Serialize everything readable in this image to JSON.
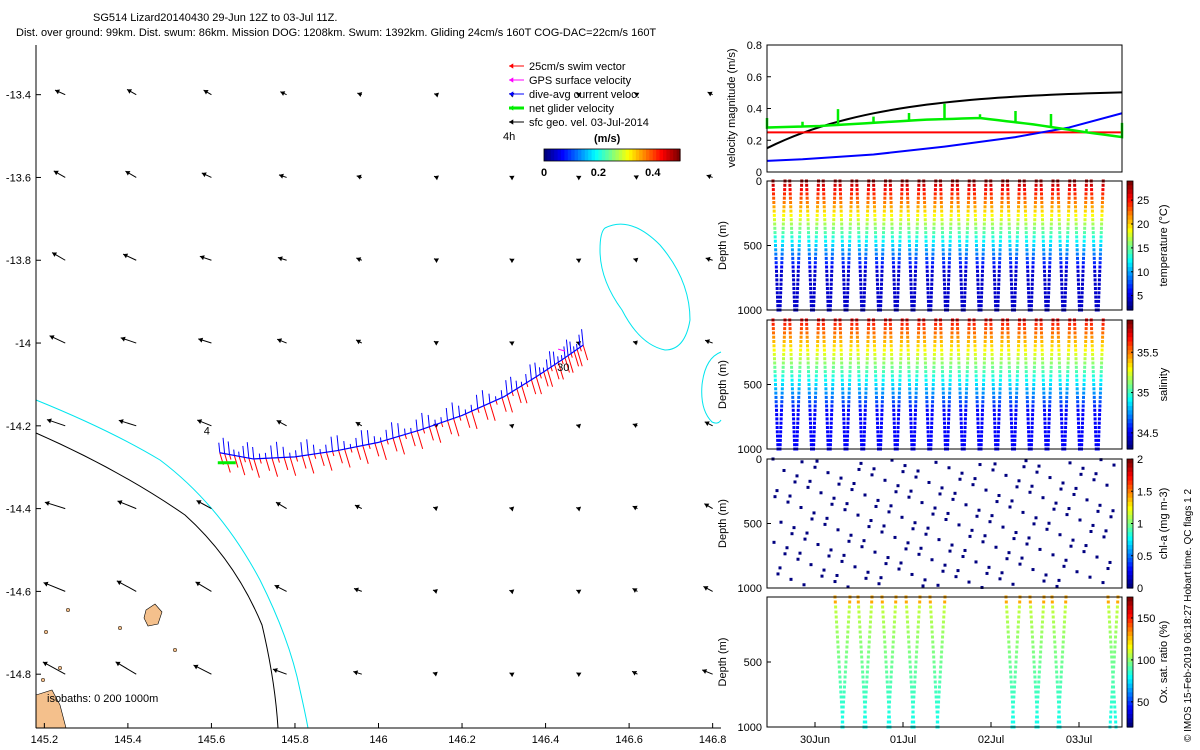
{
  "title": {
    "line1": "SG514 Lizard20140430 29-Jun 12Z to 03-Jul 11Z.",
    "line2": "Dist. over ground: 99km. Dist. swum: 86km. Mission DOG: 1208km. Swum: 1392km. Gliding 24cm/s 160T COG-DAC=22cm/s 160T"
  },
  "credit": "© IMOS 15-Feb-2019 06:18:27 Hobart time. QC flags 1  2",
  "colors": {
    "swim": "#ff0000",
    "gps": "#ff00ff",
    "dac": "#0000ff",
    "net": "#00ee00",
    "geo": "#000000",
    "isobath200": "#000000",
    "isobath1000": "#00e5ee",
    "land": "#f4c08c"
  },
  "chart_data": [
    {
      "type": "vector-map",
      "title": "SG514 Lizard20140430 29-Jun 12Z to 03-Jul 11Z.",
      "xlim": [
        145.18,
        146.82
      ],
      "ylim": [
        -14.93,
        -13.28
      ],
      "xticks": [
        145.2,
        145.4,
        145.6,
        145.8,
        146,
        146.2,
        146.4,
        146.6,
        146.8
      ],
      "xtick_labels": [
        "145.2",
        "145.4",
        "145.6",
        "145.8",
        "146",
        "146.2",
        "146.4",
        "146.6",
        "146.8"
      ],
      "yticks": [
        -13.4,
        -13.6,
        -13.8,
        -14,
        -14.2,
        -14.4,
        -14.6,
        -14.8
      ],
      "ytick_labels": [
        "-13.4",
        "-13.6",
        "-13.8",
        "-14",
        "-14.2",
        "-14.4",
        "-14.6",
        "-14.8"
      ],
      "legend": [
        {
          "label": "25cm/s swim vector",
          "color": "#ff0000"
        },
        {
          "label": "GPS surface velocity",
          "color": "#ff00ff"
        },
        {
          "label": "dive-avg current veloc.",
          "color": "#0000ff"
        },
        {
          "label": "net glider velocity",
          "color": "#00ee00"
        },
        {
          "label": "sfc geo. vel. 03-Jul-2014",
          "color": "#000000"
        }
      ],
      "colorbar": {
        "label": "(m/s)",
        "ticks": [
          "0",
          "0.2",
          "0.4"
        ],
        "range": [
          0,
          0.5
        ]
      },
      "time_marker": "4h",
      "track_labels": {
        "start": "4",
        "end": "30"
      },
      "isobaths_label": "isobaths: 0   200  1000m",
      "track": {
        "lon": [
          145.62,
          145.7,
          145.8,
          145.9,
          146.0,
          146.1,
          146.2,
          146.3,
          146.38,
          146.44,
          146.49
        ],
        "lat": [
          -14.265,
          -14.28,
          -14.275,
          -14.26,
          -14.24,
          -14.21,
          -14.175,
          -14.13,
          -14.08,
          -14.04,
          -14.005
        ]
      }
    },
    {
      "type": "line",
      "ylabel": "velocity magnitude (m/s)",
      "ylim": [
        0,
        0.8
      ],
      "yticks": [
        "0",
        "0.2",
        "0.4",
        "0.6",
        "0.8"
      ],
      "series": [
        {
          "name": "surface geostrophic",
          "color": "#000000",
          "x": [
            0,
            0.2,
            0.4,
            0.6,
            0.8,
            1
          ],
          "values": [
            0.15,
            0.3,
            0.4,
            0.46,
            0.495,
            0.51
          ]
        },
        {
          "name": "swim",
          "color": "#ff0000",
          "x": [
            0,
            1
          ],
          "values": [
            0.25,
            0.25
          ]
        },
        {
          "name": "dive-avg current",
          "color": "#0000ff",
          "x": [
            0,
            0.1,
            0.3,
            0.5,
            0.7,
            0.85,
            1
          ],
          "values": [
            0.07,
            0.08,
            0.11,
            0.16,
            0.22,
            0.28,
            0.37
          ]
        },
        {
          "name": "net glider",
          "color": "#00ee00",
          "x": [
            0,
            0.15,
            0.3,
            0.45,
            0.6,
            0.75,
            0.9,
            1
          ],
          "values": [
            0.28,
            0.29,
            0.31,
            0.33,
            0.34,
            0.3,
            0.25,
            0.22
          ]
        }
      ]
    },
    {
      "type": "scatter",
      "ylabel": "Depth (m)",
      "ylim": [
        1000,
        0
      ],
      "yticks": [
        "0",
        "500",
        "1000"
      ],
      "colorbar_label": "temperature (°C)",
      "colorbar_ticks": [
        "25",
        "20",
        "15",
        "10",
        "5"
      ],
      "colorbar_range": [
        2,
        29
      ],
      "surface_value": 28,
      "deep_value": 4,
      "dives": 20
    },
    {
      "type": "scatter",
      "ylabel": "Depth (m)",
      "ylim": [
        1000,
        0
      ],
      "yticks": [
        "500",
        "1000"
      ],
      "colorbar_label": "salinity",
      "colorbar_ticks": [
        "35.5",
        "35",
        "34.5"
      ],
      "colorbar_range": [
        34.3,
        35.9
      ],
      "surface_value": 35.7,
      "deep_value": 34.5,
      "dives": 20
    },
    {
      "type": "scatter",
      "ylabel": "Depth (m)",
      "ylim": [
        1000,
        0
      ],
      "yticks": [
        "0",
        "500",
        "1000"
      ],
      "colorbar_label": "chl-a (mg m-3)",
      "colorbar_ticks": [
        "2",
        "1.5",
        "1",
        "0.5",
        "0"
      ],
      "colorbar_range": [
        0,
        2
      ],
      "value": 0,
      "dives": 20
    },
    {
      "type": "scatter",
      "ylabel": "Depth (m)",
      "ylim": [
        1000,
        0
      ],
      "yticks": [
        "500",
        "1000"
      ],
      "colorbar_label": "Ox. sat. ratio (%)",
      "colorbar_ticks": [
        "150",
        "100",
        "50"
      ],
      "colorbar_range": [
        20,
        175
      ],
      "surface_value": 110,
      "deep_value": 80,
      "dives": 10
    },
    {
      "type": "time-axis",
      "xticks": [
        "30Jun",
        "01Jul",
        "02Jul",
        "03Jul"
      ]
    }
  ]
}
